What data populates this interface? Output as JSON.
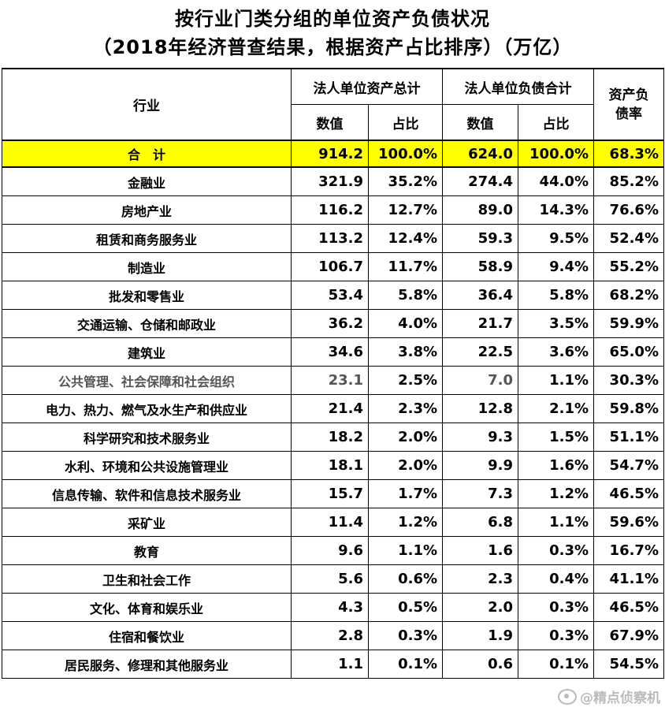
{
  "title_line1": "按行业门类分组的单位资产负债状况",
  "title_line2": "（2018年经济普查结果，根据资产占比排序）（万亿）",
  "headers": {
    "industry": "行业",
    "assets_group": "法人单位资产总计",
    "liabilities_group": "法人单位负债合计",
    "ratio": "资产负债率",
    "value": "数值",
    "share": "占比"
  },
  "total": {
    "label": "合　计",
    "assets": "914.2",
    "assets_share": "100.0%",
    "liabilities": "624.0",
    "liabilities_share": "100.0%",
    "ratio": "68.3%"
  },
  "rows": [
    {
      "industry": "金融业",
      "assets": "321.9",
      "assets_share": "35.2%",
      "liabilities": "274.4",
      "liabilities_share": "44.0%",
      "ratio": "85.2%"
    },
    {
      "industry": "房地产业",
      "assets": "116.2",
      "assets_share": "12.7%",
      "liabilities": "89.0",
      "liabilities_share": "14.3%",
      "ratio": "76.6%"
    },
    {
      "industry": "租赁和商务服务业",
      "assets": "113.2",
      "assets_share": "12.4%",
      "liabilities": "59.3",
      "liabilities_share": "9.5%",
      "ratio": "52.4%"
    },
    {
      "industry": "制造业",
      "assets": "106.7",
      "assets_share": "11.7%",
      "liabilities": "58.9",
      "liabilities_share": "9.4%",
      "ratio": "55.2%"
    },
    {
      "industry": "批发和零售业",
      "assets": "53.4",
      "assets_share": "5.8%",
      "liabilities": "36.4",
      "liabilities_share": "5.8%",
      "ratio": "68.2%"
    },
    {
      "industry": "交通运输、仓储和邮政业",
      "assets": "36.2",
      "assets_share": "4.0%",
      "liabilities": "21.7",
      "liabilities_share": "3.5%",
      "ratio": "59.9%"
    },
    {
      "industry": "建筑业",
      "assets": "34.6",
      "assets_share": "3.8%",
      "liabilities": "22.5",
      "liabilities_share": "3.6%",
      "ratio": "65.0%"
    },
    {
      "industry": "公共管理、社会保障和社会组织",
      "assets": "23.1",
      "assets_share": "2.5%",
      "liabilities": "7.0",
      "liabilities_share": "1.1%",
      "ratio": "30.3%"
    },
    {
      "industry": "电力、热力、燃气及水生产和供应业",
      "assets": "21.4",
      "assets_share": "2.3%",
      "liabilities": "12.8",
      "liabilities_share": "2.1%",
      "ratio": "59.8%"
    },
    {
      "industry": "科学研究和技术服务业",
      "assets": "18.2",
      "assets_share": "2.0%",
      "liabilities": "9.3",
      "liabilities_share": "1.5%",
      "ratio": "51.1%"
    },
    {
      "industry": "水利、环境和公共设施管理业",
      "assets": "18.1",
      "assets_share": "2.0%",
      "liabilities": "9.9",
      "liabilities_share": "1.6%",
      "ratio": "54.7%"
    },
    {
      "industry": "信息传输、软件和信息技术服务业",
      "assets": "15.7",
      "assets_share": "1.7%",
      "liabilities": "7.3",
      "liabilities_share": "1.2%",
      "ratio": "46.5%"
    },
    {
      "industry": "采矿业",
      "assets": "11.4",
      "assets_share": "1.2%",
      "liabilities": "6.8",
      "liabilities_share": "1.1%",
      "ratio": "59.6%"
    },
    {
      "industry": "教育",
      "assets": "9.6",
      "assets_share": "1.1%",
      "liabilities": "1.6",
      "liabilities_share": "0.3%",
      "ratio": "16.7%"
    },
    {
      "industry": "卫生和社会工作",
      "assets": "5.6",
      "assets_share": "0.6%",
      "liabilities": "2.3",
      "liabilities_share": "0.4%",
      "ratio": "41.1%"
    },
    {
      "industry": "文化、体育和娱乐业",
      "assets": "4.3",
      "assets_share": "0.5%",
      "liabilities": "2.0",
      "liabilities_share": "0.3%",
      "ratio": "46.5%"
    },
    {
      "industry": "住宿和餐饮业",
      "assets": "2.8",
      "assets_share": "0.3%",
      "liabilities": "1.9",
      "liabilities_share": "0.3%",
      "ratio": "67.9%"
    },
    {
      "industry": "居民服务、修理和其他服务业",
      "assets": "1.1",
      "assets_share": "0.1%",
      "liabilities": "0.6",
      "liabilities_share": "0.1%",
      "ratio": "54.5%"
    }
  ],
  "watermark": "@精点侦察机",
  "colors": {
    "total_row_bg": "#ffff00",
    "watermark": "#bbbbbb"
  }
}
